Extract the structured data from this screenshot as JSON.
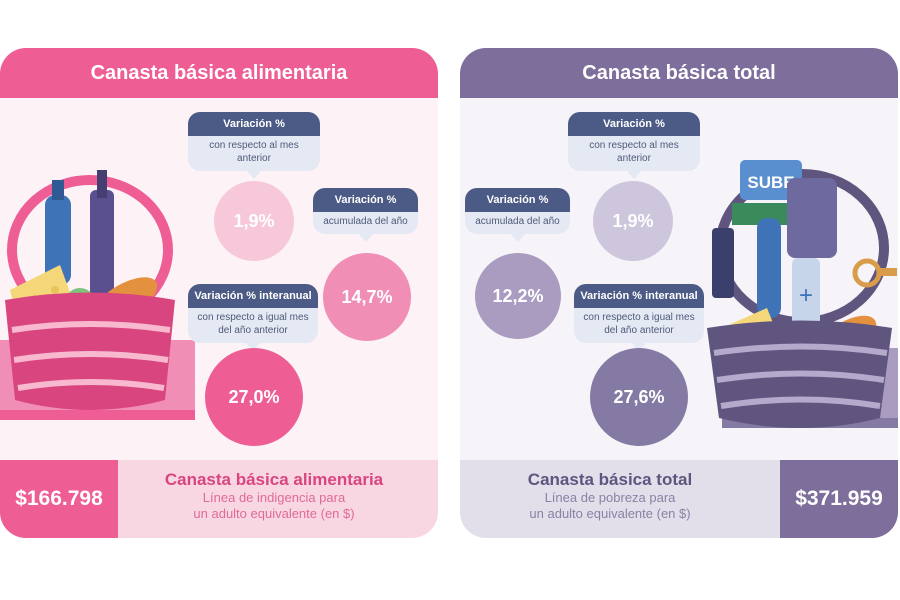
{
  "left_panel": {
    "title": "Canasta básica alimentaria",
    "bubble_month": {
      "title": "Variación %",
      "subtitle": "con respecto al mes anterior"
    },
    "value_month": "1,9%",
    "bubble_year": {
      "title": "Variación %",
      "subtitle": "acumulada del año"
    },
    "value_year": "14,7%",
    "bubble_interannual": {
      "title": "Variación % interanual",
      "subtitle": "con respecto a igual mes del año anterior"
    },
    "value_interannual": "27,0%",
    "price": "$166.798",
    "bar_title": "Canasta básica alimentaria",
    "bar_desc_line1": "Línea de indigencia para",
    "bar_desc_line2": "un adulto equivalente (en $)"
  },
  "right_panel": {
    "title": "Canasta básica total",
    "bubble_month": {
      "title": "Variación %",
      "subtitle": "con respecto al mes anterior"
    },
    "value_month": "1,9%",
    "bubble_year": {
      "title": "Variación %",
      "subtitle": "acumulada del año"
    },
    "value_year": "12,2%",
    "bubble_interannual": {
      "title": "Variación % interanual",
      "subtitle": "con respecto a igual mes del año anterior"
    },
    "value_interannual": "27,6%",
    "price": "$371.959",
    "bar_title": "Canasta básica total",
    "bar_desc_line1": "Línea de pobreza para",
    "bar_desc_line2": "un adulto equivalente (en $)",
    "card_label": "SUBE"
  },
  "colors": {
    "pink_accent": "#ee5e94",
    "purple_accent": "#7d6e9c",
    "bubble_title_bg": "#4b5b86",
    "bubble_sub_bg": "#e4e9f4"
  },
  "icons": {
    "left_basket": "food-basket-icon",
    "right_basket": "full-basket-icon"
  }
}
